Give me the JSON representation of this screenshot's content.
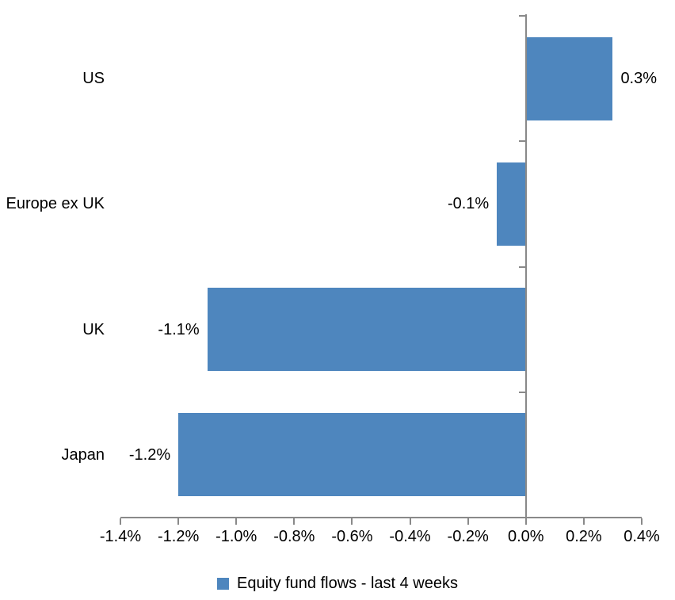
{
  "chart_data": {
    "type": "bar",
    "orientation": "horizontal",
    "title": "",
    "xlabel": "",
    "ylabel": "",
    "categories": [
      "US",
      "Europe ex UK",
      "UK",
      "Japan"
    ],
    "series": [
      {
        "name": "Equity fund flows - last 4 weeks",
        "values": [
          0.3,
          -0.1,
          -1.1,
          -1.2
        ],
        "data_labels": [
          "0.3%",
          "-0.1%",
          "-1.1%",
          "-1.2%"
        ]
      }
    ],
    "value_unit": "percent",
    "xlim": [
      -1.4,
      0.4
    ],
    "x_ticks": [
      -1.4,
      -1.2,
      -1.0,
      -0.8,
      -0.6,
      -0.4,
      -0.2,
      0.0,
      0.2,
      0.4
    ],
    "x_tick_labels": [
      "-1.4%",
      "-1.2%",
      "-1.0%",
      "-0.8%",
      "-0.6%",
      "-0.4%",
      "-0.2%",
      "0.0%",
      "0.2%",
      "0.4%"
    ],
    "grid": false,
    "legend_position": "bottom",
    "colors": {
      "bar": "#4E86BE",
      "axis": "#898989",
      "text": "#000000",
      "background": "#FFFFFF"
    }
  },
  "legend": {
    "label": "Equity fund flows - last 4 weeks"
  }
}
